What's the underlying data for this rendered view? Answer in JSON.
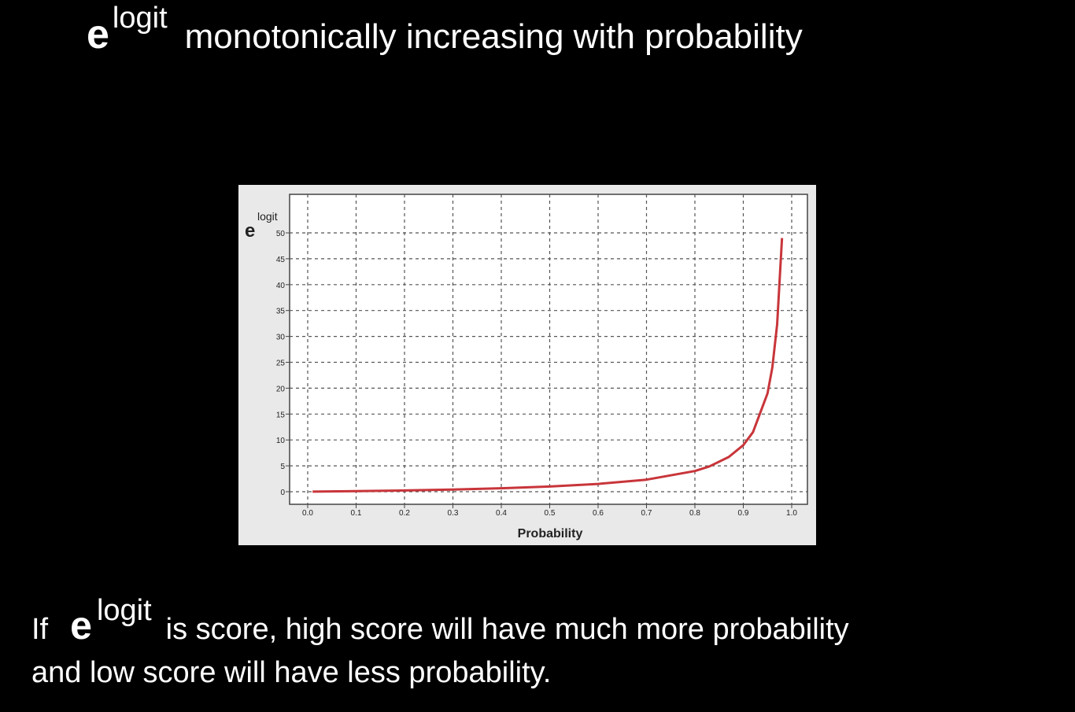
{
  "title": {
    "base": "e",
    "sup": "logit",
    "text": "monotonically increasing with probability"
  },
  "chart_data": {
    "type": "line",
    "xlabel": "Probability",
    "ylabel_base": "e",
    "ylabel_sup": "logit",
    "xlim": [
      0.0,
      1.0
    ],
    "ylim": [
      0,
      50
    ],
    "x_ticks": [
      "0.0",
      "0.1",
      "0.2",
      "0.3",
      "0.4",
      "0.5",
      "0.6",
      "0.7",
      "0.8",
      "0.9",
      "1.0"
    ],
    "y_ticks": [
      "0",
      "5",
      "10",
      "15",
      "20",
      "25",
      "30",
      "35",
      "40",
      "45",
      "50"
    ],
    "grid": true,
    "line_color": "#c8353a",
    "series": [
      {
        "x": [
          0.01,
          0.1,
          0.2,
          0.3,
          0.4,
          0.5,
          0.6,
          0.7,
          0.8,
          0.83,
          0.87,
          0.9,
          0.92,
          0.95,
          0.96,
          0.97,
          0.98
        ],
        "y": [
          0.01,
          0.11,
          0.25,
          0.43,
          0.67,
          1.0,
          1.5,
          2.33,
          4.0,
          4.9,
          6.7,
          9.0,
          11.5,
          19.0,
          24.0,
          32.3,
          49.0
        ]
      }
    ]
  },
  "bottom_text": {
    "prefix": "If",
    "base": "e",
    "sup": "logit",
    "line1_rest": "is score, high score will have much more probability",
    "line2": "and low score will have less probability."
  }
}
